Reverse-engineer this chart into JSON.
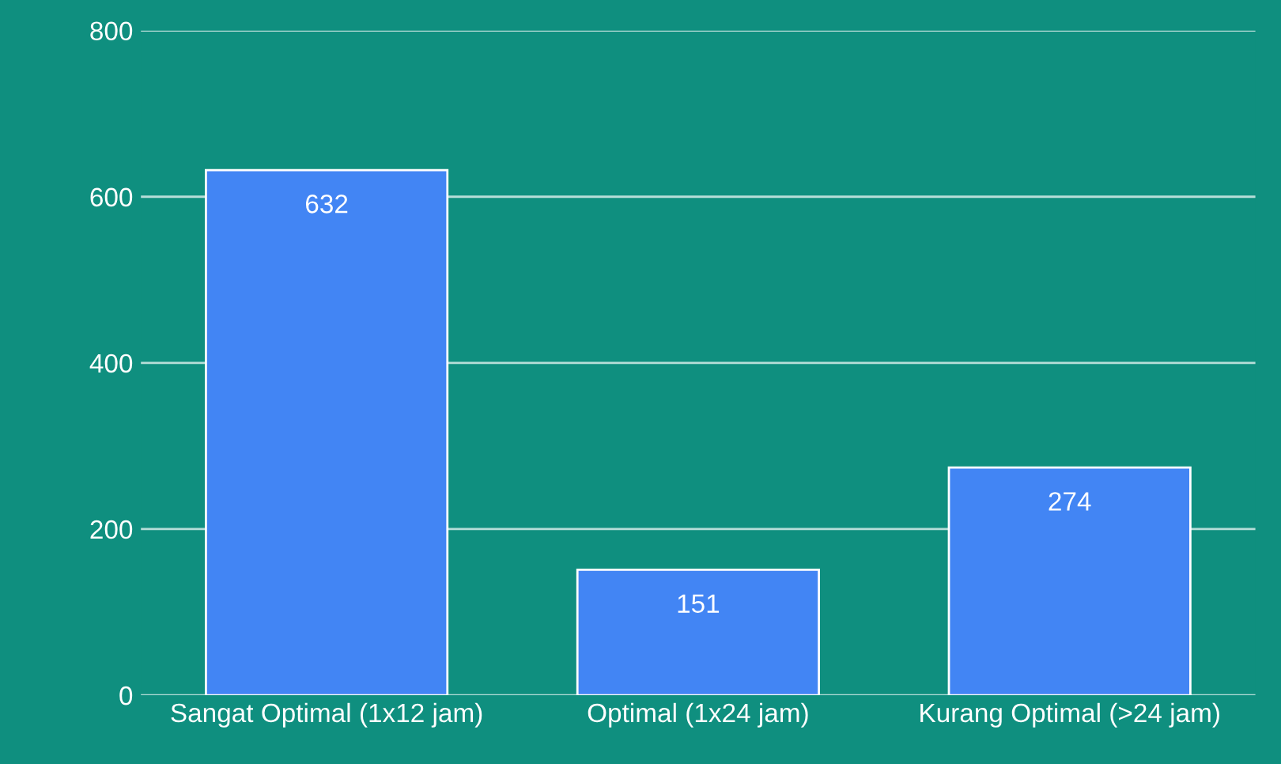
{
  "chart_data": {
    "type": "bar",
    "categories": [
      "Sangat Optimal (1x12 jam)",
      "Optimal (1x24 jam)",
      "Kurang Optimal (>24 jam)"
    ],
    "values": [
      632,
      151,
      274
    ],
    "color": "#4285f4",
    "ylim": [
      0,
      800
    ],
    "yticks": [
      0,
      200,
      400,
      600,
      800
    ],
    "grid": "y",
    "data_labels": true
  }
}
